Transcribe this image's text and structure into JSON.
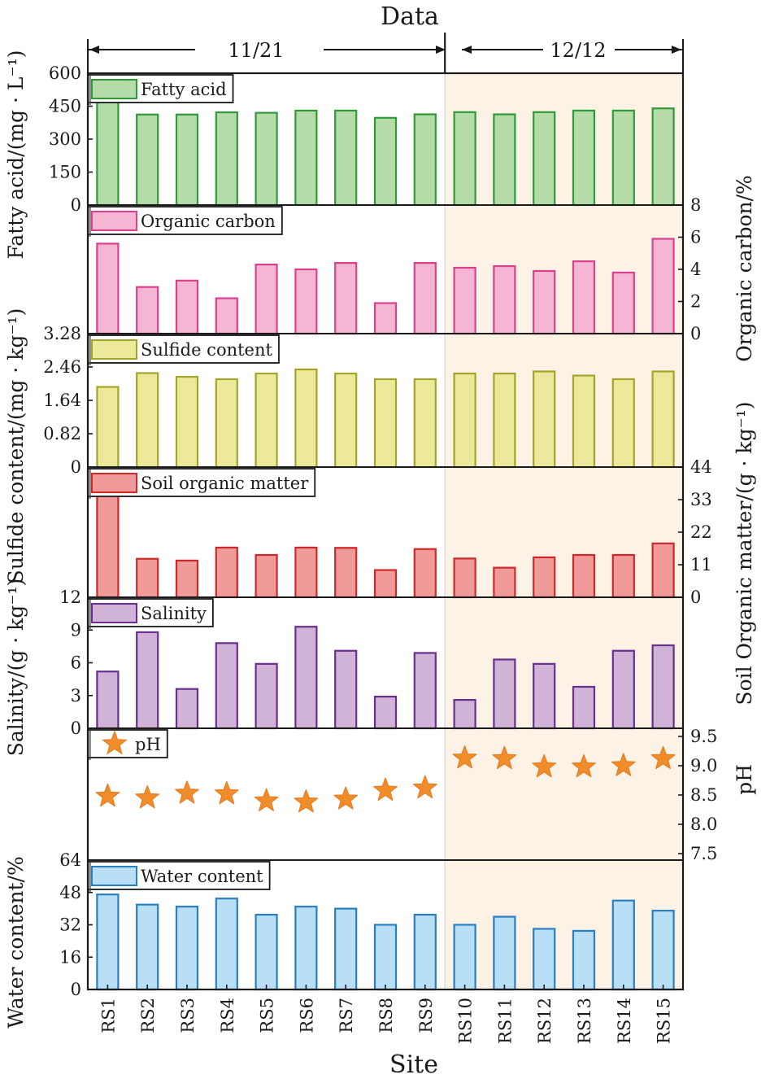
{
  "chart_data": {
    "type": "bar",
    "title": "Data",
    "xlabel": "Site",
    "periods": [
      {
        "label": "11/21",
        "sites": [
          "RS1",
          "RS2",
          "RS3",
          "RS4",
          "RS5",
          "RS6",
          "RS7",
          "RS8",
          "RS9"
        ]
      },
      {
        "label": "12/12",
        "sites": [
          "RS10",
          "RS11",
          "RS12",
          "RS13",
          "RS14",
          "RS15"
        ]
      }
    ],
    "categories": [
      "RS1",
      "RS2",
      "RS3",
      "RS4",
      "RS5",
      "RS6",
      "RS7",
      "RS8",
      "RS9",
      "RS10",
      "RS11",
      "RS12",
      "RS13",
      "RS14",
      "RS15"
    ],
    "panels": [
      {
        "key": "fatty",
        "name": "Fatty acid",
        "kind": "bar",
        "fill": "#b5dca8",
        "stroke": "#2f9a3a",
        "axis_side": "left",
        "ylabel": "Fatty acid/(mg · L⁻¹)",
        "ylim": [
          0,
          600
        ],
        "ticks": [
          "0",
          "150",
          "300",
          "450",
          "600"
        ],
        "values": [
          470,
          412,
          412,
          422,
          420,
          430,
          430,
          397,
          413,
          423,
          413,
          423,
          430,
          430,
          440
        ]
      },
      {
        "key": "oc",
        "name": "Organic carbon",
        "kind": "bar",
        "fill": "#f4b6d3",
        "stroke": "#d9418d",
        "axis_side": "right",
        "ylabel": "Organic carbon/%",
        "ylim": [
          0,
          8
        ],
        "ticks": [
          "0",
          "2",
          "4",
          "6",
          "8"
        ],
        "values": [
          5.6,
          2.9,
          3.3,
          2.2,
          4.3,
          4.0,
          4.4,
          1.9,
          4.4,
          4.1,
          4.2,
          3.9,
          4.5,
          3.8,
          5.9
        ]
      },
      {
        "key": "sulfide",
        "name": "Sulfide content",
        "kind": "bar",
        "fill": "#ecea9a",
        "stroke": "#a4a32a",
        "axis_side": "left",
        "ylabel": "Sulfide content/(mg · kg⁻¹)",
        "ylim": [
          0,
          3.28
        ],
        "ticks": [
          "0",
          "0.82",
          "1.64",
          "2.46",
          "3.28"
        ],
        "values": [
          1.97,
          2.31,
          2.22,
          2.16,
          2.3,
          2.4,
          2.3,
          2.16,
          2.16,
          2.3,
          2.3,
          2.35,
          2.25,
          2.16,
          2.35
        ]
      },
      {
        "key": "som",
        "name": "Soil organic matter",
        "kind": "bar",
        "fill": "#f09a9a",
        "stroke": "#cc2a2a",
        "axis_side": "right",
        "ylabel": "Soil Organic matter/(g · kg⁻¹)",
        "ylim": [
          0,
          44
        ],
        "ticks": [
          "0",
          "11",
          "22",
          "33",
          "44"
        ],
        "values": [
          36,
          13,
          12.4,
          16.8,
          14.3,
          16.8,
          16.7,
          9.2,
          16.3,
          13.1,
          10,
          13.5,
          14.3,
          14.3,
          18.2
        ]
      },
      {
        "key": "salinity",
        "name": "Salinity",
        "kind": "bar",
        "fill": "#d2b3d8",
        "stroke": "#6a2f8e",
        "axis_side": "left",
        "ylabel": "Salinity/(g · kg⁻¹)",
        "ylim": [
          0,
          12
        ],
        "ticks": [
          "0",
          "3",
          "6",
          "9",
          "12"
        ],
        "values": [
          5.2,
          8.8,
          3.6,
          7.8,
          5.9,
          9.3,
          7.1,
          2.9,
          6.9,
          2.6,
          6.3,
          5.9,
          3.8,
          7.1,
          7.6
        ]
      },
      {
        "key": "ph",
        "name": "pH",
        "kind": "scatter",
        "fill": "#f08c2a",
        "stroke": "#e67e22",
        "axis_side": "right",
        "ylabel": "pH",
        "ylim": [
          7.5,
          9.5
        ],
        "ticks": [
          "7.5",
          "8.0",
          "8.5",
          "9.0",
          "9.5"
        ],
        "values": [
          8.48,
          8.45,
          8.53,
          8.52,
          8.4,
          8.38,
          8.43,
          8.58,
          8.62,
          9.13,
          9.12,
          8.98,
          8.98,
          9.0,
          9.12
        ]
      },
      {
        "key": "water",
        "name": "Water content",
        "kind": "bar",
        "fill": "#b8dff6",
        "stroke": "#2a7fc0",
        "axis_side": "left",
        "ylabel": "Water content/%",
        "ylim": [
          0,
          64
        ],
        "ticks": [
          "0",
          "16",
          "32",
          "48",
          "64"
        ],
        "values": [
          47,
          42,
          41,
          45,
          37,
          41,
          40,
          32,
          37,
          32,
          36,
          30,
          29,
          44,
          39
        ]
      }
    ],
    "shade_color": "#fcf2e6",
    "axis_color": "#1a1a1a"
  }
}
